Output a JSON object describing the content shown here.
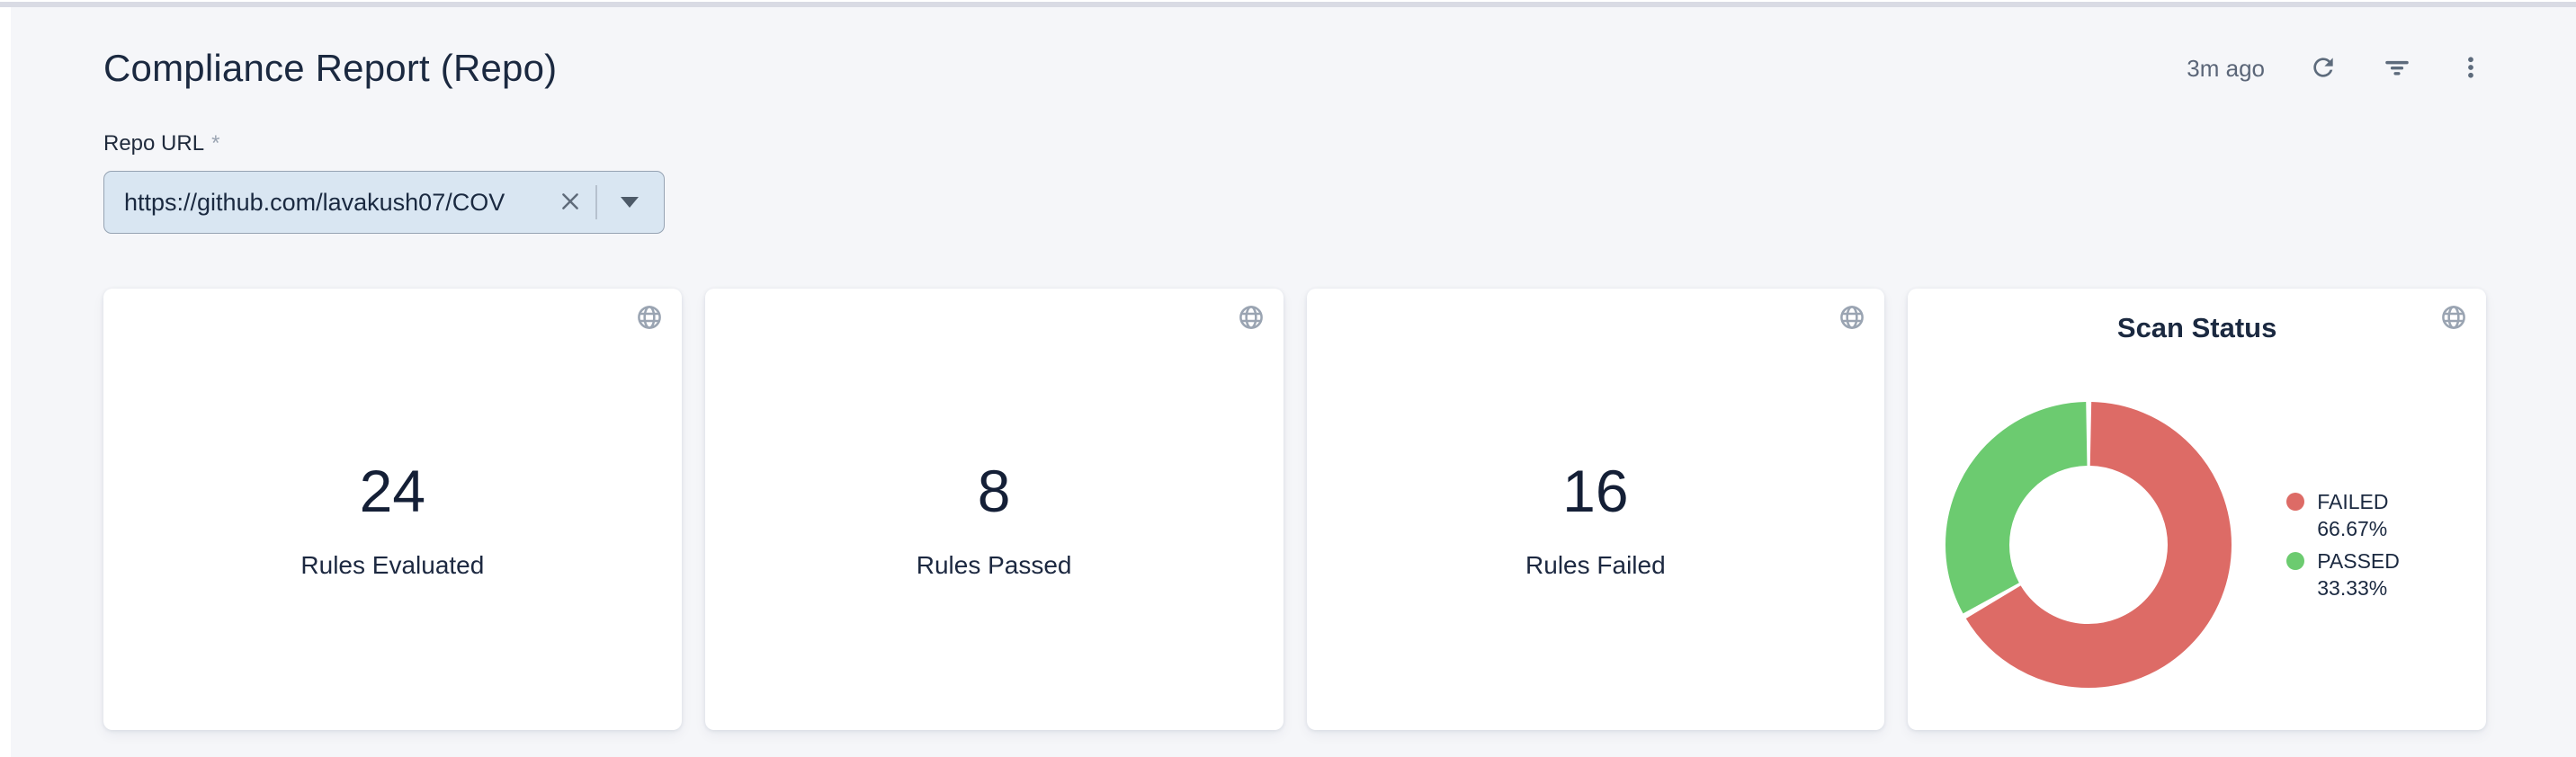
{
  "header": {
    "title": "Compliance Report (Repo)",
    "last_updated": "3m ago",
    "refresh_icon": "refresh-icon",
    "filter_icon": "filter-icon",
    "menu_icon": "kebab-menu-icon"
  },
  "form": {
    "label": "Repo URL",
    "required": "*",
    "value": "https://github.com/lavakush07/COV",
    "clear_icon": "clear-x-icon",
    "dropdown_icon": "caret-down-icon"
  },
  "stat_cards": [
    {
      "value": "24",
      "label": "Rules Evaluated"
    },
    {
      "value": "8",
      "label": "Rules Passed"
    },
    {
      "value": "16",
      "label": "Rules Failed"
    }
  ],
  "scan_status": {
    "title": "Scan Status",
    "legend": [
      {
        "label": "FAILED",
        "pct": "66.67%"
      },
      {
        "label": "PASSED",
        "pct": "33.33%"
      }
    ]
  },
  "chart_data": {
    "type": "pie",
    "donut": true,
    "title": "Scan Status",
    "series": [
      {
        "name": "FAILED",
        "value": 66.67,
        "color": "#dd6b66"
      },
      {
        "name": "PASSED",
        "value": 33.33,
        "color": "#6ccb70"
      }
    ],
    "legend_position": "right",
    "start_angle": "top",
    "direction": "clockwise"
  },
  "colors": {
    "accent_red": "#dd6b66",
    "accent_green": "#6ccb70",
    "text_dark": "#16233a",
    "icon_gray": "#5d6b7c",
    "globe_gray": "#9aa4b2",
    "input_bg": "#d9e6f2",
    "page_bg": "#f5f6f9"
  }
}
